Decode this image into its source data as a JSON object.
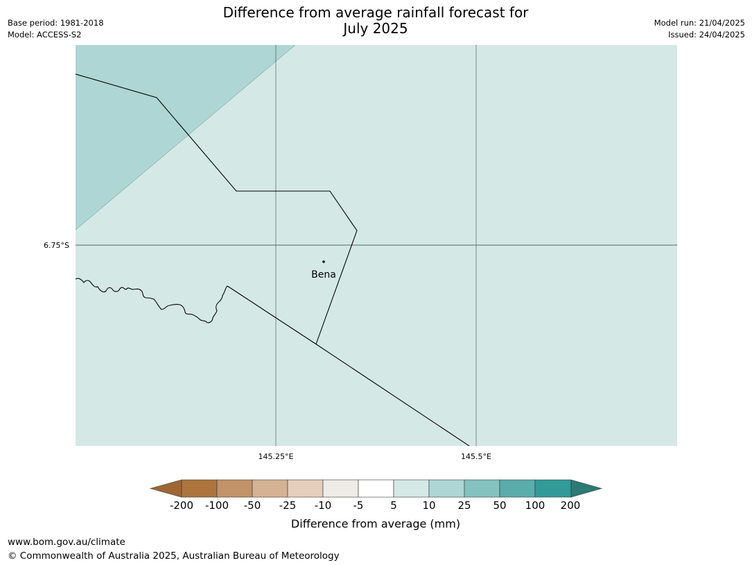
{
  "header": {
    "title_line1": "Difference from average rainfall forecast for",
    "title_line2": "July 2025",
    "base_period": "Base period: 1981-2018",
    "model": "Model: ACCESS-S2",
    "model_run": "Model run: 21/04/2025",
    "issued": "Issued: 24/04/2025"
  },
  "map": {
    "lat_label": "6.75°S",
    "lon_labels": [
      "145.25°E",
      "145.5°E"
    ],
    "place": "Bena",
    "colors": {
      "region_fill": "#d4e8e6",
      "wedge_fill": "#add6d4",
      "gridline": "#000000",
      "latline": "#5a6a66"
    }
  },
  "legend": {
    "label": "Difference from average (mm)",
    "ticks": [
      "-200",
      "-100",
      "-50",
      "-25",
      "-10",
      "-5",
      "5",
      "10",
      "25",
      "50",
      "100",
      "200"
    ],
    "colors": [
      "#9f6634",
      "#ad743d",
      "#c29268",
      "#d4b293",
      "#e5cfbc",
      "#efebe7",
      "#ffffff",
      "#d4e8e6",
      "#add6d4",
      "#84c2bf",
      "#5aadab",
      "#309b97",
      "#2a7a76"
    ]
  },
  "footer": {
    "url": "www.bom.gov.au/climate",
    "copyright": "© Commonwealth of Australia 2025, Australian Bureau of Meteorology"
  }
}
